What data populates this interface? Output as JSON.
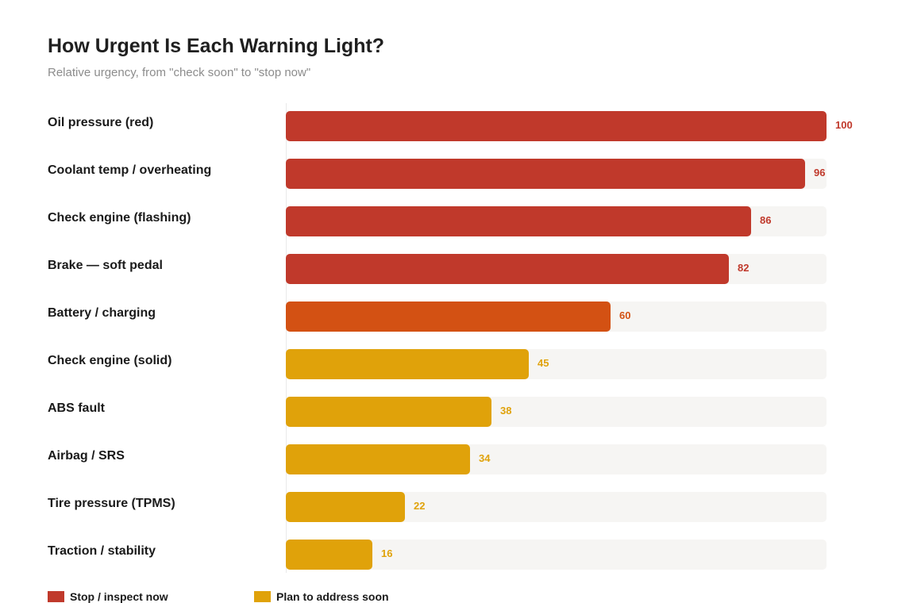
{
  "chart_data": {
    "type": "bar",
    "orientation": "horizontal",
    "title": "How Urgent Is Each Warning Light?",
    "subtitle": "Relative urgency, from \"check soon\" to \"stop now\"",
    "xlim": [
      0,
      100
    ],
    "grid": false,
    "legend_position": "bottom-left",
    "categories": [
      "Oil pressure (red)",
      "Coolant temp / overheating",
      "Check engine (flashing)",
      "Brake — soft pedal",
      "Battery / charging",
      "Check engine (solid)",
      "ABS fault",
      "Airbag / SRS",
      "Tire pressure (TPMS)",
      "Traction / stability"
    ],
    "values": [
      100,
      96,
      86,
      82,
      60,
      45,
      38,
      34,
      22,
      16
    ],
    "bar_colors": [
      "#c0392b",
      "#c0392b",
      "#c0392b",
      "#c0392b",
      "#d35113",
      "#e0a20a",
      "#e0a20a",
      "#e0a20a",
      "#e0a20a",
      "#e0a20a"
    ],
    "legend": [
      {
        "label": "Stop / inspect now",
        "color": "#c0392b"
      },
      {
        "label": "Plan to address soon",
        "color": "#e0a20a"
      }
    ]
  },
  "colors": {
    "track": "#f6f5f3",
    "text": "#1a1a1a",
    "subtitle": "#8c8c8c"
  }
}
